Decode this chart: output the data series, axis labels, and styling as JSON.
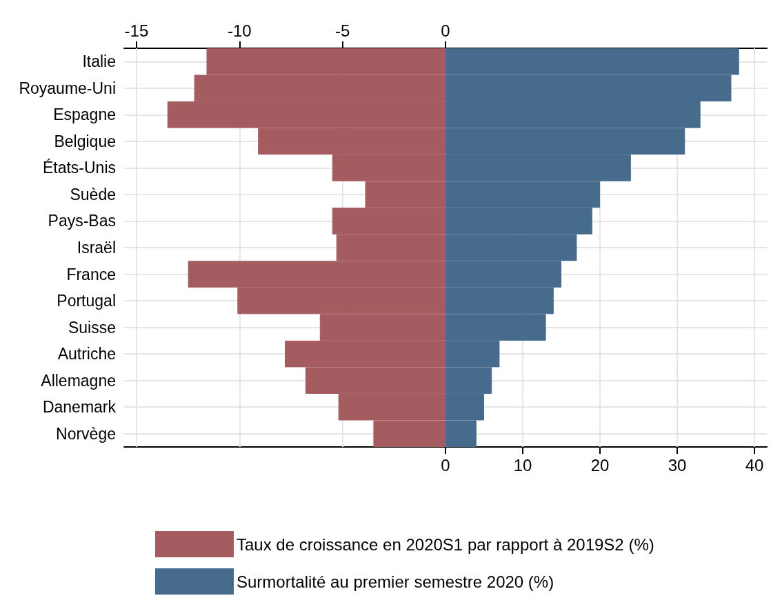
{
  "chart_data": {
    "type": "bar",
    "orientation": "horizontal",
    "categories": [
      "Italie",
      "Royaume-Uni",
      "Espagne",
      "Belgique",
      "États-Unis",
      "Suède",
      "Pays-Bas",
      "Israël",
      "France",
      "Portugal",
      "Suisse",
      "Autriche",
      "Allemagne",
      "Danemark",
      "Norvège"
    ],
    "series": [
      {
        "name": "Taux de croissance en 2020S1 par rapport à 2019S2 (%)",
        "color": "#a45c60",
        "axis": "x2",
        "values": [
          -11.6,
          -12.2,
          -13.5,
          -9.1,
          -5.5,
          -3.9,
          -5.5,
          -5.3,
          -12.5,
          -10.1,
          -6.1,
          -7.8,
          -6.8,
          -5.2,
          -3.5
        ]
      },
      {
        "name": "Surmortalité au premier semestre 2020 (%)",
        "color": "#476b8c",
        "values": [
          38,
          37,
          33,
          31,
          24,
          20,
          19,
          17,
          15,
          14,
          13,
          7,
          6,
          5,
          4
        ]
      }
    ],
    "xlim": [
      -41.6,
      41.6
    ],
    "xticks": [
      0,
      10,
      20,
      30,
      40
    ],
    "x2lim": [
      -15.6,
      15.6
    ],
    "x2ticks": [
      -15,
      -10,
      -5,
      0
    ],
    "stacked": true,
    "grid": true,
    "legend": "bottom"
  }
}
